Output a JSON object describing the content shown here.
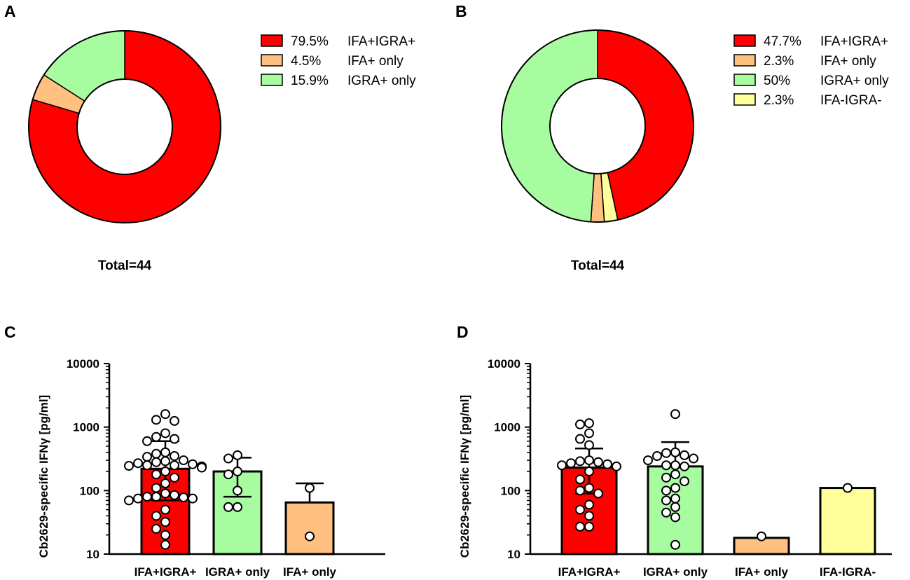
{
  "chart_data": [
    {
      "panel": "A",
      "type": "pie",
      "donut": true,
      "total_label": "Total=44",
      "slices": [
        {
          "label": "IFA+IGRA+",
          "value": 79.5,
          "value_label": "79.5%",
          "color": "#ff0000"
        },
        {
          "label": "IFA+ only",
          "value": 4.5,
          "value_label": "4.5%",
          "color": "#ffc080"
        },
        {
          "label": "IGRA+ only",
          "value": 15.9,
          "value_label": "15.9%",
          "color": "#a8fca0"
        }
      ]
    },
    {
      "panel": "B",
      "type": "pie",
      "donut": true,
      "total_label": "Total=44",
      "slices": [
        {
          "label": "IFA+IGRA+",
          "value": 47.7,
          "value_label": "47.7%",
          "color": "#ff0000"
        },
        {
          "label": "IFA-IGRA-",
          "value": 2.3,
          "value_label": "2.3%",
          "color": "#ffff9c"
        },
        {
          "label": "IFA+ only",
          "value": 2.3,
          "value_label": "2.3%",
          "color": "#ffc080"
        },
        {
          "label": "IGRA+ only",
          "value": 50,
          "value_label": "50%",
          "color": "#a8fca0"
        }
      ],
      "legend_order": [
        0,
        2,
        3,
        1
      ]
    },
    {
      "panel": "C",
      "type": "bar",
      "yscale": "log",
      "ylabel": "Cb2629-specific IFNγ [pg/ml]",
      "ylim": [
        10,
        10000
      ],
      "yticks": [
        10,
        100,
        1000,
        10000
      ],
      "ytick_labels": [
        "10",
        "100",
        "1000",
        "10000"
      ],
      "categories": [
        "IFA+IGRA+",
        "IGRA+ only",
        "IFA+ only"
      ],
      "colors": [
        "#ff0000",
        "#a8fca0",
        "#ffc080"
      ],
      "values": [
        220,
        200,
        65
      ],
      "error_low": [
        70,
        80,
        0
      ],
      "error_high": [
        600,
        330,
        130
      ],
      "points": [
        [
          1600,
          1300,
          1250,
          800,
          700,
          650,
          600,
          400,
          380,
          350,
          340,
          300,
          290,
          280,
          270,
          260,
          250,
          250,
          245,
          240,
          240,
          230,
          200,
          180,
          160,
          130,
          110,
          90,
          85,
          80,
          80,
          78,
          75,
          75,
          70,
          50,
          40,
          32,
          25,
          20,
          14
        ],
        [
          360,
          320,
          200,
          180,
          100,
          55,
          55
        ],
        [
          110,
          19
        ]
      ]
    },
    {
      "panel": "D",
      "type": "bar",
      "yscale": "log",
      "ylabel": "Cb2629-specific IFNγ [pg/ml]",
      "ylim": [
        10,
        10000
      ],
      "yticks": [
        10,
        100,
        1000,
        10000
      ],
      "ytick_labels": [
        "10",
        "100",
        "1000",
        "10000"
      ],
      "categories": [
        "IFA+IGRA+",
        "IGRA+ only",
        "IFA+ only",
        "IFA-IGRA-"
      ],
      "colors": [
        "#ff0000",
        "#a8fca0",
        "#ffc080",
        "#ffff9c"
      ],
      "values": [
        230,
        240,
        18,
        110
      ],
      "error_low": [
        90,
        0,
        0,
        0
      ],
      "error_high": [
        460,
        580,
        0,
        0
      ],
      "points": [
        [
          1150,
          1100,
          800,
          650,
          520,
          300,
          290,
          280,
          270,
          260,
          250,
          240,
          200,
          150,
          110,
          100,
          90,
          60,
          50,
          40,
          27,
          27
        ],
        [
          1600,
          400,
          390,
          360,
          350,
          320,
          300,
          250,
          250,
          240,
          180,
          160,
          140,
          110,
          100,
          75,
          70,
          55,
          45,
          38,
          14
        ],
        [
          19
        ],
        [
          110
        ]
      ]
    }
  ]
}
